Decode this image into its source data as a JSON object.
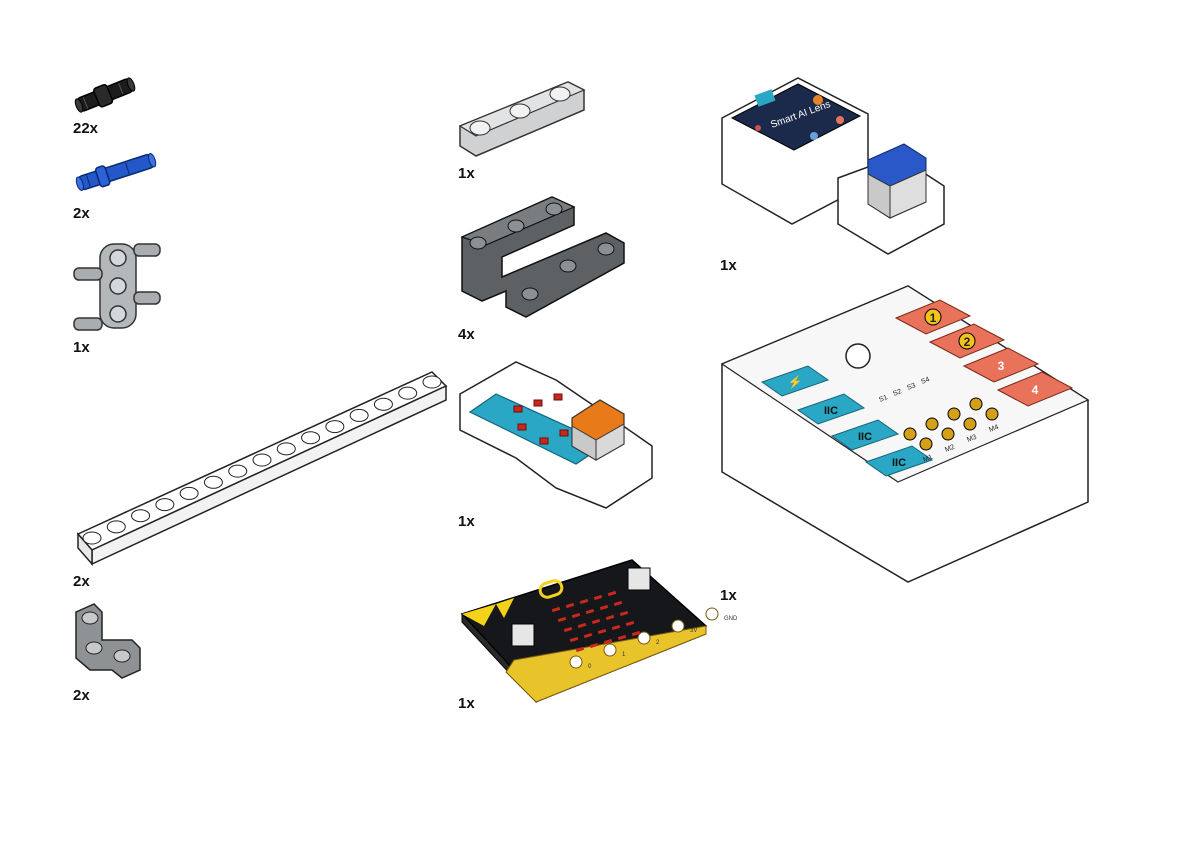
{
  "parts": [
    {
      "id": "black-pin",
      "qty": "22x",
      "color": "#1a1a1a"
    },
    {
      "id": "blue-pin",
      "qty": "2x",
      "color": "#1f4fbf"
    },
    {
      "id": "grey-cross-connector",
      "qty": "1x",
      "color": "#a9adb0"
    },
    {
      "id": "long-beam-15",
      "qty": "2x",
      "color": "#ffffff"
    },
    {
      "id": "l-beam",
      "qty": "2x",
      "color": "#8a8d90"
    },
    {
      "id": "short-beam-3",
      "qty": "1x",
      "color": "#c8cacc"
    },
    {
      "id": "u-frame-beam",
      "qty": "4x",
      "color": "#5a5c5e"
    },
    {
      "id": "led-module",
      "qty": "1x",
      "color": "#2aa7c4"
    },
    {
      "id": "microbit",
      "qty": "1x",
      "color": "#111111"
    },
    {
      "id": "smart-ai-lens",
      "qty": "1x",
      "color": "#ffffff"
    },
    {
      "id": "expansion-board",
      "qty": "1x",
      "color": "#ffffff"
    }
  ],
  "ai_lens": {
    "screen_text": "Smart AI Lens"
  },
  "expansion": {
    "ports": [
      "1",
      "2",
      "3",
      "4"
    ],
    "iic_labels": [
      "IIC",
      "IIC",
      "IIC"
    ],
    "servo_labels": [
      "S1",
      "S2",
      "S3",
      "S4"
    ],
    "motor_labels": [
      "M1",
      "M2",
      "M3",
      "M4"
    ]
  },
  "microbit_pins": [
    "0",
    "1",
    "2",
    "3V",
    "GND"
  ],
  "colors": {
    "teal": "#2aa7c4",
    "salmon": "#e8735a",
    "gold": "#e8b820",
    "gold_pin": "#d4a017"
  }
}
